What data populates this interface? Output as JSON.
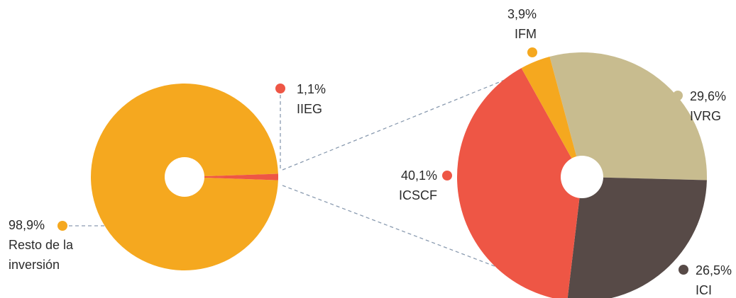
{
  "chart_data": [
    {
      "type": "pie",
      "categories": [
        "Resto de la inversión",
        "IIEG"
      ],
      "values": [
        98.9,
        1.1
      ],
      "value_labels": [
        "98,9%",
        "1,1%"
      ],
      "colors": [
        "#f5a81f",
        "#ee5645"
      ]
    },
    {
      "type": "pie",
      "categories": [
        "IVRG",
        "ICI",
        "ICSCF",
        "IFM"
      ],
      "values": [
        29.6,
        26.5,
        40.1,
        3.9
      ],
      "value_labels": [
        "29,6%",
        "26,5%",
        "40,1%",
        "3,9%"
      ],
      "colors": [
        "#c8bc8f",
        "#574a47",
        "#ee5645",
        "#f5a81f"
      ]
    }
  ]
}
